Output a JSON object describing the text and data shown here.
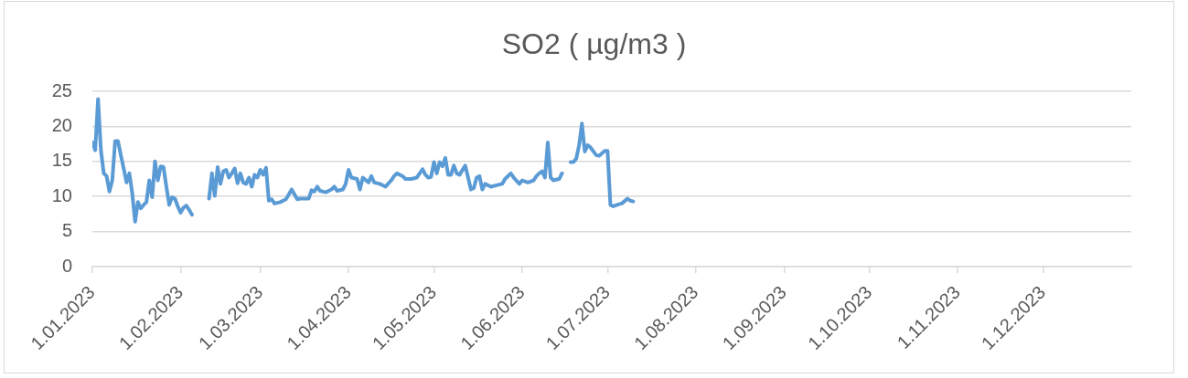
{
  "chart_data": {
    "type": "line",
    "title": "SO2 ( µg/m3 )",
    "x": [
      "2023-01-01",
      "2023-01-02",
      "2023-01-03",
      "2023-01-04",
      "2023-01-05",
      "2023-01-06",
      "2023-01-07",
      "2023-01-08",
      "2023-01-09",
      "2023-01-10",
      "2023-01-11",
      "2023-01-12",
      "2023-01-13",
      "2023-01-14",
      "2023-01-15",
      "2023-01-16",
      "2023-01-17",
      "2023-01-18",
      "2023-01-19",
      "2023-01-20",
      "2023-01-21",
      "2023-01-22",
      "2023-01-23",
      "2023-01-24",
      "2023-01-25",
      "2023-01-26",
      "2023-01-27",
      "2023-01-28",
      "2023-01-29",
      "2023-01-30",
      "2023-01-31",
      "2023-02-01",
      "2023-02-02",
      "2023-02-03",
      "2023-02-04",
      "2023-02-05",
      "2023-02-06",
      "2023-02-11",
      "2023-02-12",
      "2023-02-13",
      "2023-02-14",
      "2023-02-15",
      "2023-02-16",
      "2023-02-17",
      "2023-02-18",
      "2023-02-19",
      "2023-02-20",
      "2023-02-21",
      "2023-02-22",
      "2023-02-23",
      "2023-02-24",
      "2023-02-25",
      "2023-02-26",
      "2023-02-27",
      "2023-02-28",
      "2023-03-01",
      "2023-03-02",
      "2023-03-03",
      "2023-03-04",
      "2023-03-05",
      "2023-03-06",
      "2023-03-08",
      "2023-03-10",
      "2023-03-11",
      "2023-03-12",
      "2023-03-14",
      "2023-03-15",
      "2023-03-18",
      "2023-03-19",
      "2023-03-20",
      "2023-03-21",
      "2023-03-22",
      "2023-03-24",
      "2023-03-26",
      "2023-03-27",
      "2023-03-28",
      "2023-03-30",
      "2023-03-31",
      "2023-04-01",
      "2023-04-02",
      "2023-04-04",
      "2023-04-05",
      "2023-04-06",
      "2023-04-08",
      "2023-04-09",
      "2023-04-10",
      "2023-04-12",
      "2023-04-14",
      "2023-04-16",
      "2023-04-17",
      "2023-04-18",
      "2023-04-20",
      "2023-04-21",
      "2023-04-23",
      "2023-04-25",
      "2023-04-27",
      "2023-04-28",
      "2023-04-29",
      "2023-04-30",
      "2023-05-01",
      "2023-05-02",
      "2023-05-03",
      "2023-05-04",
      "2023-05-05",
      "2023-05-06",
      "2023-05-07",
      "2023-05-08",
      "2023-05-09",
      "2023-05-10",
      "2023-05-12",
      "2023-05-14",
      "2023-05-15",
      "2023-05-16",
      "2023-05-17",
      "2023-05-18",
      "2023-05-19",
      "2023-05-21",
      "2023-05-23",
      "2023-05-25",
      "2023-05-26",
      "2023-05-28",
      "2023-05-29",
      "2023-05-31",
      "2023-06-01",
      "2023-06-03",
      "2023-06-05",
      "2023-06-06",
      "2023-06-07",
      "2023-06-08",
      "2023-06-09",
      "2023-06-10",
      "2023-06-11",
      "2023-06-12",
      "2023-06-14",
      "2023-06-15",
      "2023-06-16",
      "2023-06-18",
      "2023-06-19",
      "2023-06-20",
      "2023-06-21",
      "2023-06-22",
      "2023-06-23",
      "2023-06-24",
      "2023-06-25",
      "2023-06-27",
      "2023-06-28",
      "2023-06-30",
      "2023-07-01",
      "2023-07-02",
      "2023-07-03",
      "2023-07-05",
      "2023-07-06",
      "2023-07-08",
      "2023-07-09",
      "2023-07-10"
    ],
    "series": [
      {
        "color": "#5b9bd5",
        "values": [
          17.7,
          16.6,
          23.9,
          16.6,
          13.3,
          12.9,
          10.7,
          12.3,
          17.9,
          17.9,
          15.9,
          14.0,
          12.0,
          13.3,
          10.5,
          6.4,
          9.2,
          8.3,
          8.8,
          9.2,
          12.3,
          9.9,
          15.0,
          12.3,
          14.3,
          14.2,
          11.4,
          8.8,
          9.9,
          9.7,
          8.6,
          7.7,
          8.4,
          8.7,
          8.1,
          7.4,
          null,
          9.7,
          13.3,
          10.1,
          14.2,
          11.8,
          13.6,
          13.8,
          12.7,
          13.3,
          14.0,
          11.9,
          13.3,
          12.0,
          11.8,
          12.7,
          11.4,
          13.1,
          12.7,
          13.8,
          13.1,
          14.1,
          9.4,
          9.6,
          9.0,
          9.2,
          9.6,
          10.3,
          11.0,
          9.6,
          9.7,
          9.7,
          10.9,
          10.7,
          11.4,
          10.8,
          10.6,
          11.0,
          11.4,
          10.8,
          11.0,
          11.8,
          13.8,
          12.7,
          12.5,
          11.0,
          12.7,
          12.0,
          12.9,
          12.0,
          11.8,
          11.4,
          12.3,
          12.9,
          13.3,
          12.9,
          12.5,
          12.5,
          12.7,
          13.9,
          13.1,
          12.7,
          12.8,
          14.9,
          13.3,
          14.9,
          14.3,
          15.5,
          13.1,
          13.1,
          14.4,
          13.3,
          13.1,
          14.4,
          11.0,
          11.2,
          12.7,
          12.9,
          11.0,
          11.8,
          11.4,
          11.6,
          11.8,
          12.5,
          13.3,
          12.7,
          11.8,
          12.3,
          12.0,
          12.3,
          12.9,
          13.3,
          13.6,
          12.7,
          17.7,
          12.7,
          12.3,
          12.5,
          13.3,
          null,
          14.9,
          14.9,
          15.4,
          17.3,
          20.4,
          16.4,
          17.3,
          17.0,
          15.9,
          15.8,
          16.5,
          16.5,
          8.8,
          8.6,
          8.9,
          9.0,
          9.7,
          9.4,
          9.3
        ]
      }
    ],
    "xlim": [
      "2023-01-01",
      "2024-01-01"
    ],
    "xticks": [
      {
        "value": "2023-01-01",
        "label": "1.01.2023"
      },
      {
        "value": "2023-02-01",
        "label": "1.02.2023"
      },
      {
        "value": "2023-03-01",
        "label": "1.03.2023"
      },
      {
        "value": "2023-04-01",
        "label": "1.04.2023"
      },
      {
        "value": "2023-05-01",
        "label": "1.05.2023"
      },
      {
        "value": "2023-06-01",
        "label": "1.06.2023"
      },
      {
        "value": "2023-07-01",
        "label": "1.07.2023"
      },
      {
        "value": "2023-08-01",
        "label": "1.08.2023"
      },
      {
        "value": "2023-09-01",
        "label": "1.09.2023"
      },
      {
        "value": "2023-10-01",
        "label": "1.10.2023"
      },
      {
        "value": "2023-11-01",
        "label": "1.11.2023"
      },
      {
        "value": "2023-12-01",
        "label": "1.12.2023"
      }
    ],
    "ylim": [
      0,
      25
    ],
    "yticks": [
      0,
      5,
      10,
      15,
      20,
      25
    ],
    "grid": "y"
  }
}
